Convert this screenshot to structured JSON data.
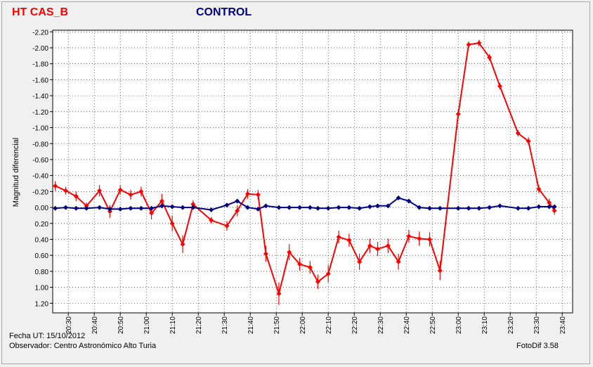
{
  "titles": {
    "target": "HT CAS_B",
    "control": "CONTROL"
  },
  "footer": {
    "date": "Fecha UT: 15/10/2012",
    "observer": "Observador: Centro Astronómico Alto Turia",
    "software": "FotoDif 3.58"
  },
  "colors": {
    "target": "#ff0000",
    "control": "#000080",
    "grid": "#000000",
    "background": "#f0f0f0"
  },
  "chart_data": {
    "type": "line",
    "title": "",
    "xlabel": "",
    "ylabel": "Magnitud diferencial",
    "y_inverted": true,
    "xlim": [
      "20:24",
      "23:44"
    ],
    "ylim": [
      1.32,
      -2.22
    ],
    "x_ticks": [
      "20:30",
      "20:40",
      "20:50",
      "21:00",
      "21:10",
      "21:20",
      "21:30",
      "21:40",
      "21:50",
      "22:00",
      "22:10",
      "22:20",
      "22:30",
      "22:40",
      "22:50",
      "23:00",
      "23:10",
      "23:20",
      "23:30",
      "23:40"
    ],
    "y_ticks": [
      "-2.20",
      "-2.00",
      "-1.80",
      "-1.60",
      "-1.40",
      "-1.20",
      "-1.00",
      "-0.80",
      "-0.60",
      "-0.40",
      "-0.20",
      "0.00",
      "0.20",
      "0.40",
      "0.60",
      "0.80",
      "1.00",
      "1.20"
    ],
    "grid": true,
    "legend": "none",
    "series": [
      {
        "name": "HT CAS_B",
        "color": "#ff0000",
        "points": [
          {
            "x": "20:25",
            "y": -0.27,
            "err": 0.06
          },
          {
            "x": "20:29",
            "y": -0.21,
            "err": 0.05
          },
          {
            "x": "20:33",
            "y": -0.14,
            "err": 0.06
          },
          {
            "x": "20:37",
            "y": -0.02,
            "err": 0.04
          },
          {
            "x": "20:42",
            "y": -0.21,
            "err": 0.07
          },
          {
            "x": "20:46",
            "y": 0.05,
            "err": 0.08
          },
          {
            "x": "20:50",
            "y": -0.22,
            "err": 0.06
          },
          {
            "x": "20:54",
            "y": -0.16,
            "err": 0.06
          },
          {
            "x": "20:58",
            "y": -0.2,
            "err": 0.06
          },
          {
            "x": "21:02",
            "y": 0.07,
            "err": 0.08
          },
          {
            "x": "21:06",
            "y": -0.08,
            "err": 0.09
          },
          {
            "x": "21:10",
            "y": 0.2,
            "err": 0.1
          },
          {
            "x": "21:14",
            "y": 0.46,
            "err": 0.11
          },
          {
            "x": "21:18",
            "y": -0.04,
            "err": 0.05
          },
          {
            "x": "21:25",
            "y": 0.16,
            "err": 0.04
          },
          {
            "x": "21:31",
            "y": 0.23,
            "err": 0.06
          },
          {
            "x": "21:35",
            "y": 0.04,
            "err": 0.07
          },
          {
            "x": "21:39",
            "y": -0.17,
            "err": 0.06
          },
          {
            "x": "21:43",
            "y": -0.16,
            "err": 0.06
          },
          {
            "x": "21:46",
            "y": 0.58,
            "err": 0.1
          },
          {
            "x": "21:51",
            "y": 1.08,
            "err": 0.14
          },
          {
            "x": "21:55",
            "y": 0.56,
            "err": 0.1
          },
          {
            "x": "21:59",
            "y": 0.71,
            "err": 0.08
          },
          {
            "x": "22:03",
            "y": 0.75,
            "err": 0.08
          },
          {
            "x": "22:06",
            "y": 0.93,
            "err": 0.09
          },
          {
            "x": "22:10",
            "y": 0.83,
            "err": 0.11
          },
          {
            "x": "22:14",
            "y": 0.37,
            "err": 0.08
          },
          {
            "x": "22:18",
            "y": 0.41,
            "err": 0.08
          },
          {
            "x": "22:22",
            "y": 0.68,
            "err": 0.1
          },
          {
            "x": "22:26",
            "y": 0.48,
            "err": 0.09
          },
          {
            "x": "22:29",
            "y": 0.52,
            "err": 0.09
          },
          {
            "x": "22:33",
            "y": 0.48,
            "err": 0.09
          },
          {
            "x": "22:37",
            "y": 0.68,
            "err": 0.1
          },
          {
            "x": "22:41",
            "y": 0.36,
            "err": 0.08
          },
          {
            "x": "22:45",
            "y": 0.39,
            "err": 0.09
          },
          {
            "x": "22:49",
            "y": 0.4,
            "err": 0.09
          },
          {
            "x": "22:53",
            "y": 0.79,
            "err": 0.12
          },
          {
            "x": "23:00",
            "y": -1.17,
            "err": 0.06
          },
          {
            "x": "23:04",
            "y": -2.04,
            "err": 0.04
          },
          {
            "x": "23:08",
            "y": -2.06,
            "err": 0.04
          },
          {
            "x": "23:12",
            "y": -1.88,
            "err": 0.04
          },
          {
            "x": "23:16",
            "y": -1.52,
            "err": 0.04
          },
          {
            "x": "23:23",
            "y": -0.93,
            "err": 0.04
          },
          {
            "x": "23:27",
            "y": -0.83,
            "err": 0.05
          },
          {
            "x": "23:31",
            "y": -0.23,
            "err": 0.05
          },
          {
            "x": "23:35",
            "y": -0.06,
            "err": 0.05
          },
          {
            "x": "23:37",
            "y": 0.04,
            "err": 0.05
          }
        ]
      },
      {
        "name": "CONTROL",
        "color": "#000080",
        "points": [
          {
            "x": "20:25",
            "y": 0.01
          },
          {
            "x": "20:29",
            "y": 0.0
          },
          {
            "x": "20:33",
            "y": 0.01
          },
          {
            "x": "20:37",
            "y": 0.01
          },
          {
            "x": "20:42",
            "y": 0.0
          },
          {
            "x": "20:46",
            "y": 0.02
          },
          {
            "x": "20:50",
            "y": 0.02
          },
          {
            "x": "20:54",
            "y": 0.01
          },
          {
            "x": "20:58",
            "y": 0.01
          },
          {
            "x": "21:02",
            "y": 0.01
          },
          {
            "x": "21:06",
            "y": -0.02
          },
          {
            "x": "21:10",
            "y": -0.01
          },
          {
            "x": "21:14",
            "y": 0.0
          },
          {
            "x": "21:18",
            "y": 0.0
          },
          {
            "x": "21:25",
            "y": 0.03
          },
          {
            "x": "21:31",
            "y": -0.03
          },
          {
            "x": "21:35",
            "y": -0.08
          },
          {
            "x": "21:39",
            "y": 0.0
          },
          {
            "x": "21:43",
            "y": 0.02
          },
          {
            "x": "21:46",
            "y": -0.02
          },
          {
            "x": "21:51",
            "y": 0.0
          },
          {
            "x": "21:55",
            "y": 0.0
          },
          {
            "x": "21:59",
            "y": 0.0
          },
          {
            "x": "22:03",
            "y": 0.0
          },
          {
            "x": "22:06",
            "y": 0.01
          },
          {
            "x": "22:10",
            "y": 0.01
          },
          {
            "x": "22:14",
            "y": 0.0
          },
          {
            "x": "22:18",
            "y": 0.0
          },
          {
            "x": "22:22",
            "y": 0.01
          },
          {
            "x": "22:26",
            "y": -0.01
          },
          {
            "x": "22:29",
            "y": -0.02
          },
          {
            "x": "22:33",
            "y": -0.02
          },
          {
            "x": "22:37",
            "y": -0.12
          },
          {
            "x": "22:41",
            "y": -0.08
          },
          {
            "x": "22:45",
            "y": 0.0
          },
          {
            "x": "22:49",
            "y": 0.01
          },
          {
            "x": "22:53",
            "y": 0.01
          },
          {
            "x": "23:00",
            "y": 0.01
          },
          {
            "x": "23:04",
            "y": 0.01
          },
          {
            "x": "23:08",
            "y": 0.01
          },
          {
            "x": "23:12",
            "y": 0.0
          },
          {
            "x": "23:16",
            "y": -0.02
          },
          {
            "x": "23:23",
            "y": 0.01
          },
          {
            "x": "23:27",
            "y": 0.01
          },
          {
            "x": "23:31",
            "y": -0.01
          },
          {
            "x": "23:35",
            "y": -0.01
          },
          {
            "x": "23:37",
            "y": -0.01
          }
        ]
      }
    ]
  }
}
